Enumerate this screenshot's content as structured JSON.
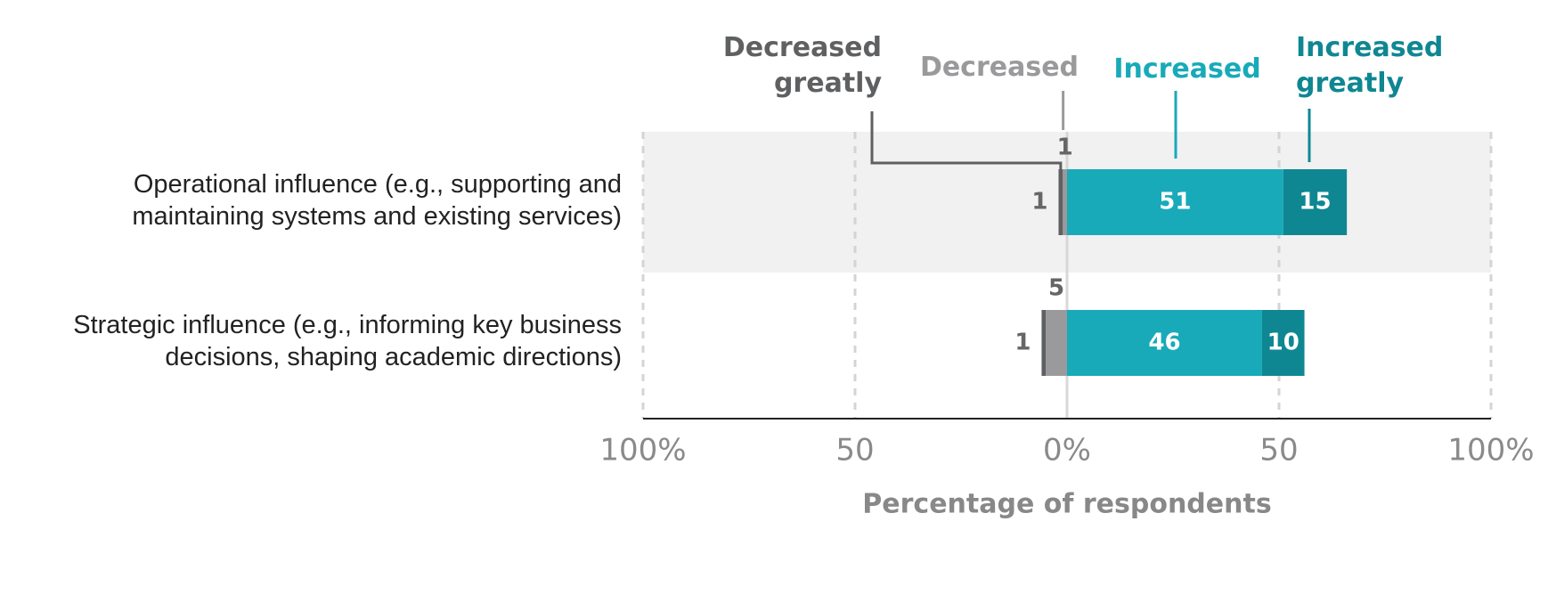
{
  "chart_data": {
    "type": "diverging-bar",
    "categories": [
      "Operational influence (e.g., supporting and maintaining systems and existing services)",
      "Strategic influence (e.g., informing key business decisions, shaping academic directions)"
    ],
    "series": [
      {
        "name": "Decreased greatly",
        "color": "#5f6062",
        "side": "left",
        "values": [
          1,
          1
        ]
      },
      {
        "name": "Decreased",
        "color": "#9a9a9c",
        "side": "left",
        "values": [
          1,
          5
        ]
      },
      {
        "name": "Increased",
        "color": "#18aab9",
        "side": "right",
        "values": [
          51,
          46
        ]
      },
      {
        "name": "Increased greatly",
        "color": "#0f8792",
        "side": "right",
        "values": [
          15,
          10
        ]
      }
    ],
    "xlim": [
      -100,
      100
    ],
    "xticks": [
      {
        "value": -100,
        "label": "100%"
      },
      {
        "value": -50,
        "label": "50"
      },
      {
        "value": 0,
        "label": "0%"
      },
      {
        "value": 50,
        "label": "50"
      },
      {
        "value": 100,
        "label": "100%"
      }
    ],
    "xlabel": "Percentage of respondents",
    "grid": true
  }
}
